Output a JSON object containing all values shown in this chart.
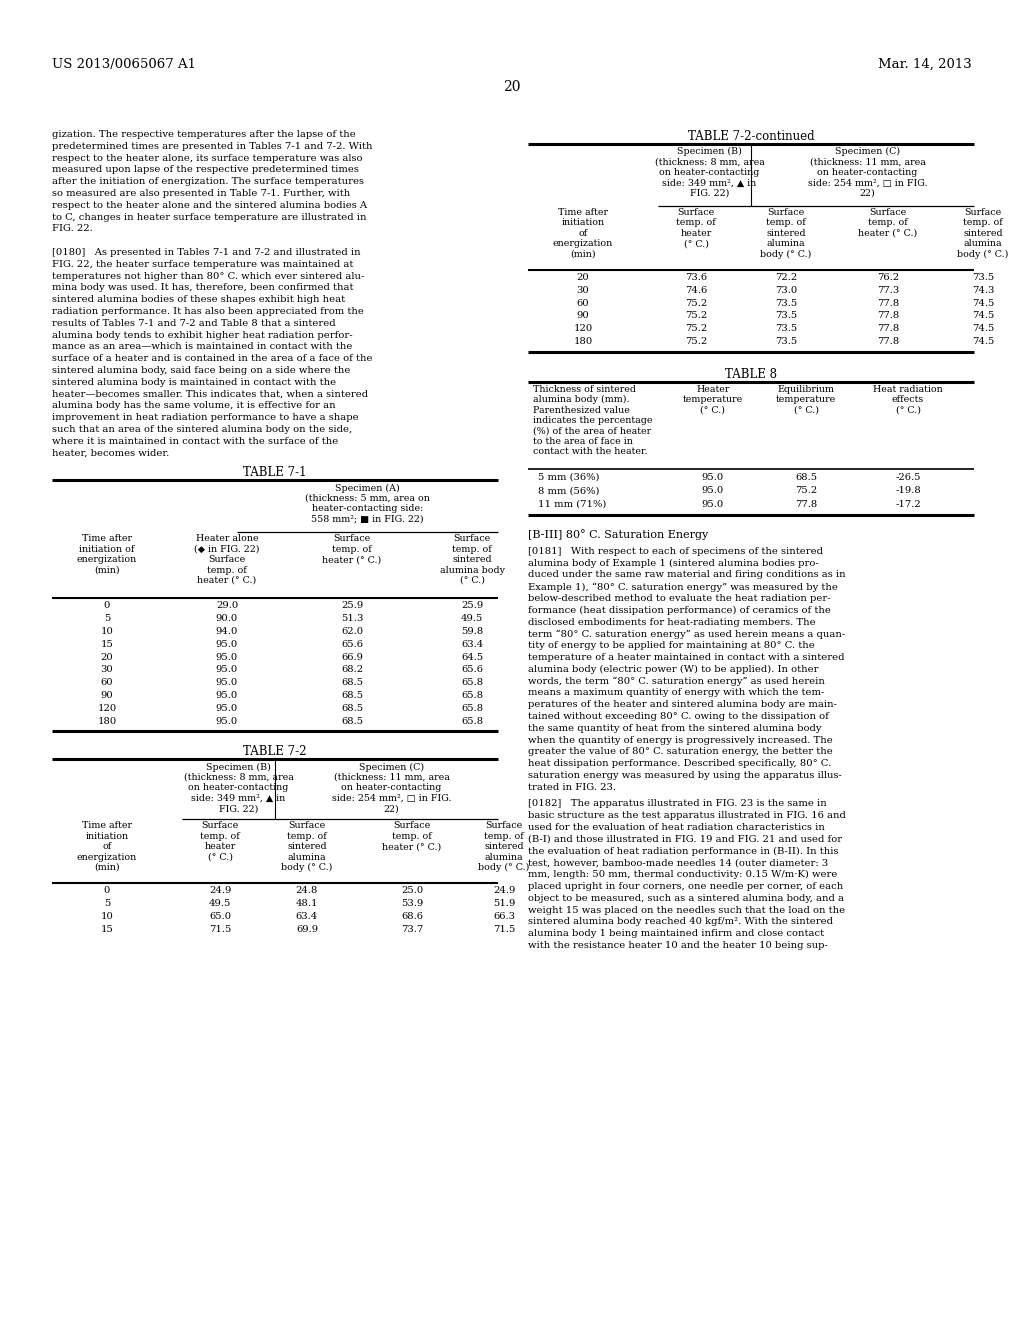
{
  "header_left": "US 2013/0065067 A1",
  "header_right": "Mar. 14, 2013",
  "page_number": "20",
  "left_col_intro": [
    "gization. The respective temperatures after the lapse of the",
    "predetermined times are presented in Tables 7-1 and 7-2. With",
    "respect to the heater alone, its surface temperature was also",
    "measured upon lapse of the respective predetermined times",
    "after the initiation of energization. The surface temperatures",
    "so measured are also presented in Table 7-1. Further, with",
    "respect to the heater alone and the sintered alumina bodies A",
    "to C, changes in heater surface temperature are illustrated in",
    "FIG. 22.",
    "",
    "[0180]   As presented in Tables 7-1 and 7-2 and illustrated in",
    "FIG. 22, the heater surface temperature was maintained at",
    "temperatures not higher than 80° C. which ever sintered alu-",
    "mina body was used. It has, therefore, been confirmed that",
    "sintered alumina bodies of these shapes exhibit high heat",
    "radiation performance. It has also been appreciated from the",
    "results of Tables 7-1 and 7-2 and Table 8 that a sintered",
    "alumina body tends to exhibit higher heat radiation perfor-",
    "mance as an area—which is maintained in contact with the",
    "surface of a heater and is contained in the area of a face of the",
    "sintered alumina body, said face being on a side where the",
    "sintered alumina body is maintained in contact with the",
    "heater—becomes smaller. This indicates that, when a sintered",
    "alumina body has the same volume, it is effective for an",
    "improvement in heat radiation performance to have a shape",
    "such that an area of the sintered alumina body on the side,",
    "where it is maintained in contact with the surface of the",
    "heater, becomes wider."
  ],
  "table71_title": "TABLE 7-1",
  "table71_spec_a": "Specimen (A)\n(thickness: 5 mm, area on\nheater-contacting side:\n558 mm²; ■ in FIG. 22)",
  "table71_col1": "Time after\ninitiation of\nenergization\n(min)",
  "table71_col2": "Heater alone\n(◆ in FIG. 22)\nSurface\ntemp. of\nheater (° C.)",
  "table71_col3": "Surface\ntemp. of\nheater (° C.)",
  "table71_col4": "Surface\ntemp. of\nsintered\nalumina body\n(° C.)",
  "table71_data": [
    [
      "0",
      "29.0",
      "25.9",
      "25.9"
    ],
    [
      "5",
      "90.0",
      "51.3",
      "49.5"
    ],
    [
      "10",
      "94.0",
      "62.0",
      "59.8"
    ],
    [
      "15",
      "95.0",
      "65.6",
      "63.4"
    ],
    [
      "20",
      "95.0",
      "66.9",
      "64.5"
    ],
    [
      "30",
      "95.0",
      "68.2",
      "65.6"
    ],
    [
      "60",
      "95.0",
      "68.5",
      "65.8"
    ],
    [
      "90",
      "95.0",
      "68.5",
      "65.8"
    ],
    [
      "120",
      "95.0",
      "68.5",
      "65.8"
    ],
    [
      "180",
      "95.0",
      "68.5",
      "65.8"
    ]
  ],
  "table72_title": "TABLE 7-2",
  "table72_spec_b": "Specimen (B)\n(thickness: 8 mm, area\non heater-contacting\nside: 349 mm², ▲ in\nFIG. 22)",
  "table72_spec_c": "Specimen (C)\n(thickness: 11 mm, area\non heater-contacting\nside: 254 mm², □ in FIG.\n22)",
  "table72_col1": "Time after\ninitiation\nof\nenergization\n(min)",
  "table72_col2b": "Surface\ntemp. of\nheater\n(° C.)",
  "table72_col3b": "Surface\ntemp. of\nsintered\nalumina\nbody (° C.)",
  "table72_col2c": "Surface\ntemp. of\nheater (° C.)",
  "table72_col3c": "Surface\ntemp. of\nsintered\nalumina\nbody (° C.)",
  "table72_data_partial": [
    [
      "0",
      "24.9",
      "24.8",
      "25.0",
      "24.9"
    ],
    [
      "5",
      "49.5",
      "48.1",
      "53.9",
      "51.9"
    ],
    [
      "10",
      "65.0",
      "63.4",
      "68.6",
      "66.3"
    ],
    [
      "15",
      "71.5",
      "69.9",
      "73.7",
      "71.5"
    ]
  ],
  "table72c_title": "TABLE 7-2-continued",
  "table72c_spec_b": "Specimen (B)\n(thickness: 8 mm, area\non heater-contacting\nside: 349 mm², ▲ in\nFIG. 22)",
  "table72c_spec_c": "Specimen (C)\n(thickness: 11 mm, area\non heater-contacting\nside: 254 mm², □ in FIG.\n22)",
  "table72c_data": [
    [
      "20",
      "73.6",
      "72.2",
      "76.2",
      "73.5"
    ],
    [
      "30",
      "74.6",
      "73.0",
      "77.3",
      "74.3"
    ],
    [
      "60",
      "75.2",
      "73.5",
      "77.8",
      "74.5"
    ],
    [
      "90",
      "75.2",
      "73.5",
      "77.8",
      "74.5"
    ],
    [
      "120",
      "75.2",
      "73.5",
      "77.8",
      "74.5"
    ],
    [
      "180",
      "75.2",
      "73.5",
      "77.8",
      "74.5"
    ]
  ],
  "table8_title": "TABLE 8",
  "table8_col1": "Thickness of sintered\nalumina body (mm).\nParenthesized value\nindicates the percentage\n(%) of the area of heater\nto the area of face in\ncontact with the heater.",
  "table8_col2": "Heater\ntemperature\n(° C.)",
  "table8_col3": "Equilibrium\ntemperature\n(° C.)",
  "table8_col4": "Heat radiation\neffects\n(° C.)",
  "table8_data": [
    [
      "5 mm (36%)",
      "95.0",
      "68.5",
      "-26.5"
    ],
    [
      "8 mm (56%)",
      "95.0",
      "75.2",
      "-19.8"
    ],
    [
      "11 mm (71%)",
      "95.0",
      "77.8",
      "-17.2"
    ]
  ],
  "right_body": [
    "[B-III] 80° C. Saturation Energy",
    "",
    "[0181]   With respect to each of specimens of the sintered",
    "alumina body of Example 1 (sintered alumina bodies pro-",
    "duced under the same raw material and firing conditions as in",
    "Example 1), “80° C. saturation energy” was measured by the",
    "below-described method to evaluate the heat radiation per-",
    "formance (heat dissipation performance) of ceramics of the",
    "disclosed embodiments for heat-radiating members. The",
    "term “80° C. saturation energy” as used herein means a quan-",
    "tity of energy to be applied for maintaining at 80° C. the",
    "temperature of a heater maintained in contact with a sintered",
    "alumina body (electric power (W) to be applied). In other",
    "words, the term “80° C. saturation energy” as used herein",
    "means a maximum quantity of energy with which the tem-",
    "peratures of the heater and sintered alumina body are main-",
    "tained without exceeding 80° C. owing to the dissipation of",
    "the same quantity of heat from the sintered alumina body",
    "when the quantity of energy is progressively increased. The",
    "greater the value of 80° C. saturation energy, the better the",
    "heat dissipation performance. Described specifically, 80° C.",
    "saturation energy was measured by using the apparatus illus-",
    "trated in FIG. 23.",
    "",
    "[0182]   The apparatus illustrated in FIG. 23 is the same in",
    "basic structure as the test apparatus illustrated in FIG. 16 and",
    "used for the evaluation of heat radiation characteristics in",
    "(B-I) and those illustrated in FIG. 19 and FIG. 21 and used for",
    "the evaluation of heat radiation performance in (B-II). In this",
    "test, however, bamboo-made needles 14 (outer diameter: 3",
    "mm, length: 50 mm, thermal conductivity: 0.15 W/m·K) were",
    "placed upright in four corners, one needle per corner, of each",
    "object to be measured, such as a sintered alumina body, and a",
    "weight 15 was placed on the needles such that the load on the",
    "sintered alumina body reached 40 kgf/m². With the sintered",
    "alumina body 1 being maintained infirm and close contact",
    "with the resistance heater 10 and the heater 10 being sup-"
  ]
}
